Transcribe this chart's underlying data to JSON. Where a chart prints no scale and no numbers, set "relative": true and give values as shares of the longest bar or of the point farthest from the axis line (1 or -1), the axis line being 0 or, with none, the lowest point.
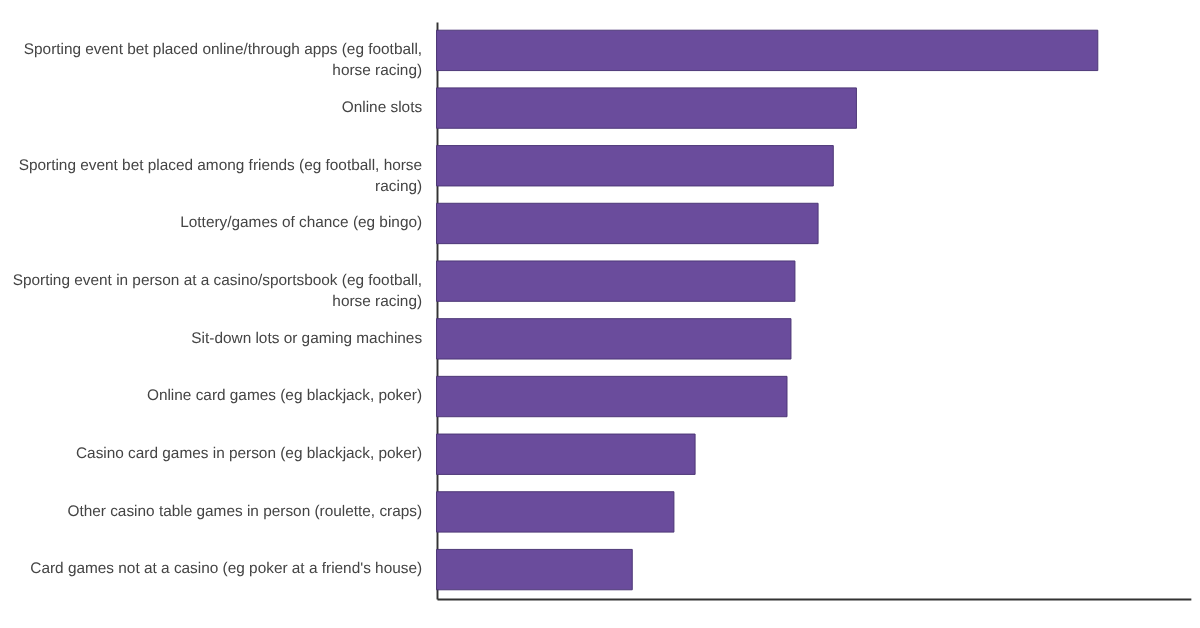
{
  "chart_data": {
    "type": "bar",
    "orientation": "horizontal",
    "relative": true,
    "color": "#6a4c9c",
    "grid": false,
    "categories": [
      "Sporting event bet placed online/through apps (eg football, horse racing)",
      "Online slots",
      "Sporting event bet placed among friends (eg football, horse racing)",
      "Lottery/games of chance (eg bingo)",
      "Sporting event in person at a casino/sportsbook (eg football, horse racing)",
      "Sit-down lots or gaming machines",
      "Online card games (eg blackjack, poker)",
      "Casino card games in person (eg blackjack, poker)",
      "Other casino table games in person (roulette, craps)",
      "Card games not at a casino (eg poker at a friend's house)"
    ],
    "values": [
      1,
      0.635,
      0.6,
      0.577,
      0.542,
      0.536,
      0.53,
      0.391,
      0.359,
      0.296
    ]
  }
}
